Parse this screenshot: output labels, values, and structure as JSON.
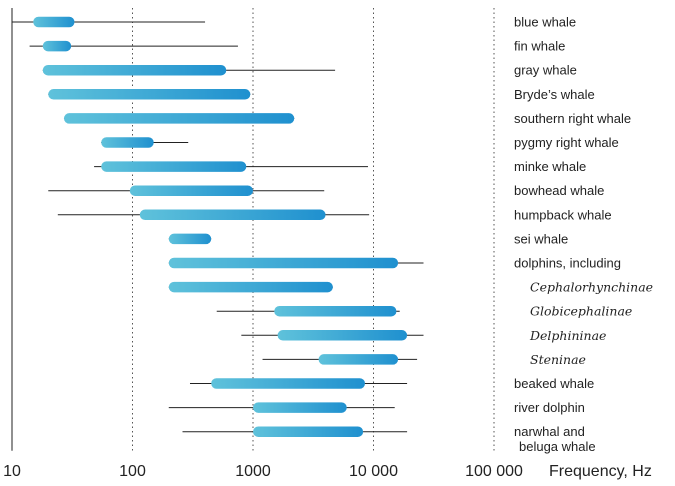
{
  "chart_data": {
    "type": "range-bar",
    "x_scale": "log",
    "xlim": [
      10,
      100000
    ],
    "x_ticks": [
      10,
      100,
      1000,
      10000,
      100000
    ],
    "x_tick_labels": [
      "10",
      "100",
      "1000",
      "10 000",
      "100 000"
    ],
    "xlabel": "Frequency, Hz",
    "grid": "vertical dotted at 100, 1000, 10 000, 100 000",
    "colors": {
      "bar_start": "#5fc2db",
      "bar_end": "#1f90cf",
      "range_line": "#222222",
      "grid": "#555555"
    },
    "rows": [
      {
        "label": "blue whale",
        "italic": false,
        "range": [
          10,
          400
        ],
        "bar": [
          15,
          33
        ]
      },
      {
        "label": "fin whale",
        "italic": false,
        "range": [
          14,
          750
        ],
        "bar": [
          18,
          31
        ]
      },
      {
        "label": "gray whale",
        "italic": false,
        "range": [
          18,
          4800
        ],
        "bar": [
          18,
          600
        ]
      },
      {
        "label": "Bryde’s whale",
        "italic": false,
        "range": [
          20,
          950
        ],
        "bar": [
          20,
          950
        ]
      },
      {
        "label": "southern right whale",
        "italic": false,
        "range": [
          27,
          2200
        ],
        "bar": [
          27,
          2200
        ]
      },
      {
        "label": "pygmy right whale",
        "italic": false,
        "range": [
          55,
          290
        ],
        "bar": [
          55,
          150
        ]
      },
      {
        "label": "minke whale",
        "italic": false,
        "range": [
          48,
          9000
        ],
        "bar": [
          55,
          880
        ]
      },
      {
        "label": "bowhead whale",
        "italic": false,
        "range": [
          20,
          3900
        ],
        "bar": [
          95,
          1000
        ]
      },
      {
        "label": "humpback whale",
        "italic": false,
        "range": [
          24,
          9200
        ],
        "bar": [
          115,
          4000
        ]
      },
      {
        "label": "sei whale",
        "italic": false,
        "range": [
          200,
          450
        ],
        "bar": [
          200,
          450
        ]
      },
      {
        "label": "dolphins, including",
        "italic": false,
        "range": [
          200,
          26000
        ],
        "bar": [
          200,
          16000
        ]
      },
      {
        "label": "Cephalorhynchinae",
        "italic": true,
        "range": [
          200,
          4600
        ],
        "bar": [
          200,
          4600
        ]
      },
      {
        "label": "Globicephalinae",
        "italic": true,
        "range": [
          500,
          16500
        ],
        "bar": [
          1500,
          15500
        ]
      },
      {
        "label": "Delphininae",
        "italic": true,
        "range": [
          800,
          26000
        ],
        "bar": [
          1600,
          19000
        ]
      },
      {
        "label": "Steninae",
        "italic": true,
        "range": [
          1200,
          23000
        ],
        "bar": [
          3500,
          16000
        ]
      },
      {
        "label": "beaked whale",
        "italic": false,
        "range": [
          300,
          19000
        ],
        "bar": [
          450,
          8500
        ]
      },
      {
        "label": "river dolphin",
        "italic": false,
        "range": [
          200,
          15000
        ],
        "bar": [
          1000,
          6000
        ]
      },
      {
        "label": "narwhal and\nbeluga whale",
        "italic": false,
        "range": [
          260,
          19000
        ],
        "bar": [
          1000,
          8200
        ]
      }
    ]
  }
}
